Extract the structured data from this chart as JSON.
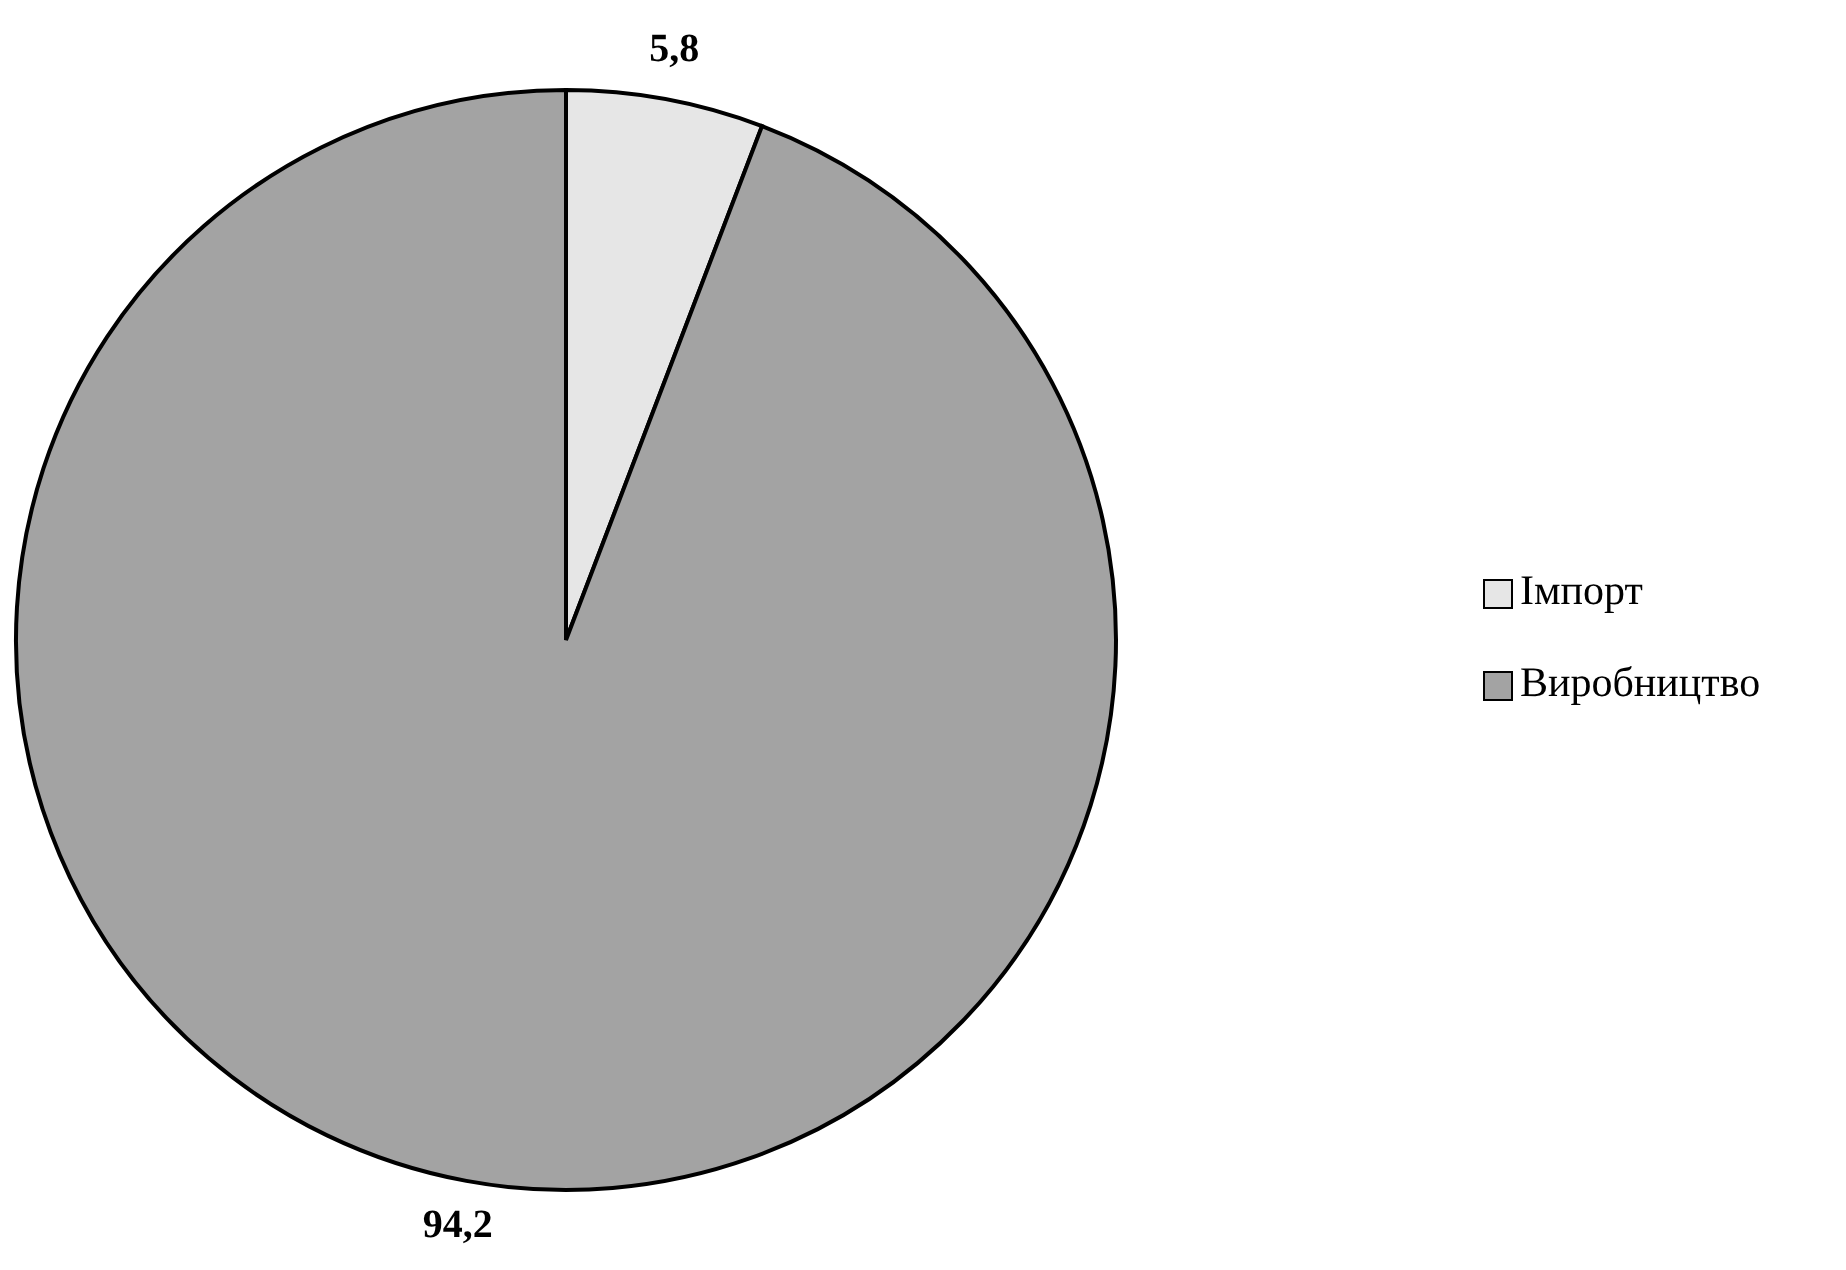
{
  "chart_data": {
    "type": "pie",
    "categories": [
      "Імпорт",
      "Виробництво"
    ],
    "values": [
      5.8,
      94.2
    ],
    "colors": [
      "#e6e6e6",
      "#a3a3a3"
    ],
    "value_labels": [
      "5,8",
      "94,2"
    ],
    "legend": "right"
  }
}
